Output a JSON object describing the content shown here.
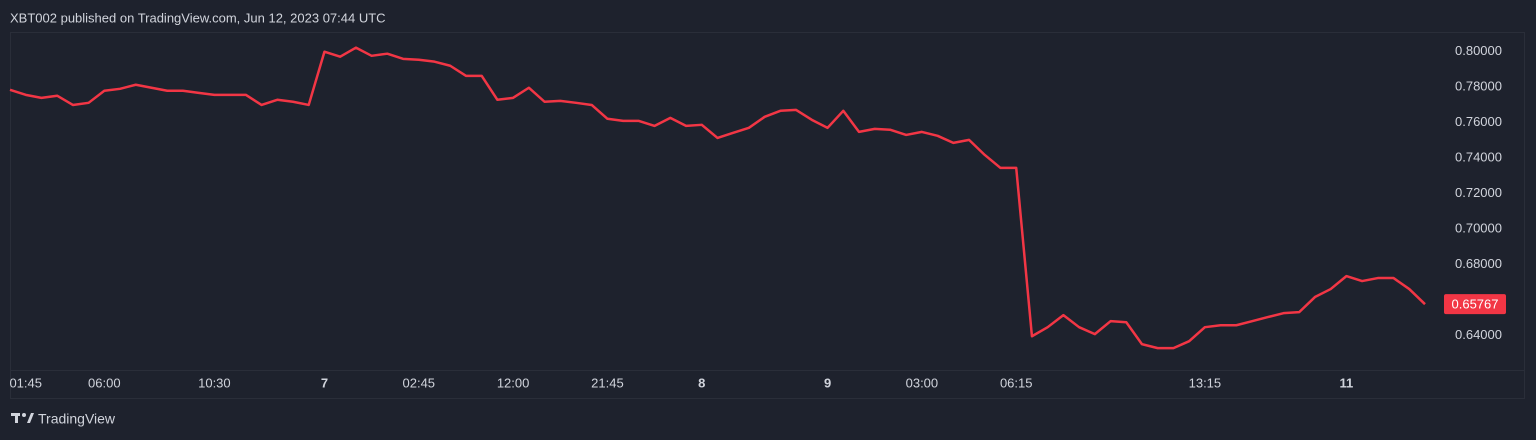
{
  "chart_data": {
    "type": "line",
    "title": "XBT002 published on TradingView.com, Jun 12, 2023 07:44 UTC",
    "watermark": "TradingView",
    "categories": [
      null,
      "01:45",
      null,
      null,
      null,
      null,
      "06:00",
      null,
      null,
      null,
      null,
      null,
      null,
      "10:30",
      null,
      null,
      null,
      null,
      null,
      null,
      "7",
      null,
      null,
      null,
      null,
      null,
      "02:45",
      null,
      null,
      null,
      null,
      null,
      "12:00",
      null,
      null,
      null,
      null,
      null,
      "21:45",
      null,
      null,
      null,
      null,
      null,
      "8",
      null,
      null,
      null,
      null,
      null,
      null,
      null,
      "9",
      null,
      null,
      null,
      null,
      null,
      "03:00",
      null,
      null,
      null,
      null,
      null,
      "06:15",
      null,
      null,
      null,
      null,
      null,
      null,
      null,
      null,
      null,
      null,
      null,
      "13:15",
      null,
      null,
      null,
      null,
      null,
      null,
      null,
      null,
      "11",
      null,
      null,
      null,
      null,
      null
    ],
    "series": [
      {
        "color": "#f23645",
        "values": [
          0.7785,
          0.7757,
          0.774,
          0.7752,
          0.77,
          0.7712,
          0.778,
          0.7791,
          0.7814,
          0.7797,
          0.778,
          0.778,
          0.7768,
          0.7757,
          0.7757,
          0.7757,
          0.77,
          0.7729,
          0.7718,
          0.77,
          0.8,
          0.7972,
          0.8023,
          0.7977,
          0.7989,
          0.796,
          0.7955,
          0.7944,
          0.7921,
          0.7864,
          0.7864,
          0.7729,
          0.774,
          0.7797,
          0.7718,
          0.7723,
          0.7712,
          0.77,
          0.7622,
          0.761,
          0.761,
          0.7582,
          0.7627,
          0.7582,
          0.7588,
          0.7514,
          0.7543,
          0.7571,
          0.7633,
          0.7667,
          0.7672,
          0.7616,
          0.7571,
          0.7667,
          0.7548,
          0.7565,
          0.756,
          0.7531,
          0.7548,
          0.7526,
          0.7486,
          0.7503,
          0.7418,
          0.7345,
          0.7345,
          0.6396,
          0.6447,
          0.6515,
          0.6447,
          0.6408,
          0.6481,
          0.6475,
          0.6351,
          0.6329,
          0.6329,
          0.6368,
          0.6447,
          0.6458,
          0.6458,
          0.6481,
          0.6504,
          0.6526,
          0.6532,
          0.6617,
          0.6662,
          0.6735,
          0.6707,
          0.6724,
          0.6724,
          0.6662,
          0.65767
        ]
      }
    ],
    "last_price": {
      "value": 0.65767,
      "label": "0.65767"
    },
    "ylim": [
      0.62,
      0.81
    ],
    "yticks": [
      {
        "value": 0.64,
        "label": "0.64000"
      },
      {
        "value": 0.68,
        "label": "0.68000"
      },
      {
        "value": 0.7,
        "label": "0.70000"
      },
      {
        "value": 0.72,
        "label": "0.72000"
      },
      {
        "value": 0.74,
        "label": "0.74000"
      },
      {
        "value": 0.76,
        "label": "0.76000"
      },
      {
        "value": 0.78,
        "label": "0.78000"
      },
      {
        "value": 0.8,
        "label": "0.80000"
      }
    ],
    "grid": false
  }
}
